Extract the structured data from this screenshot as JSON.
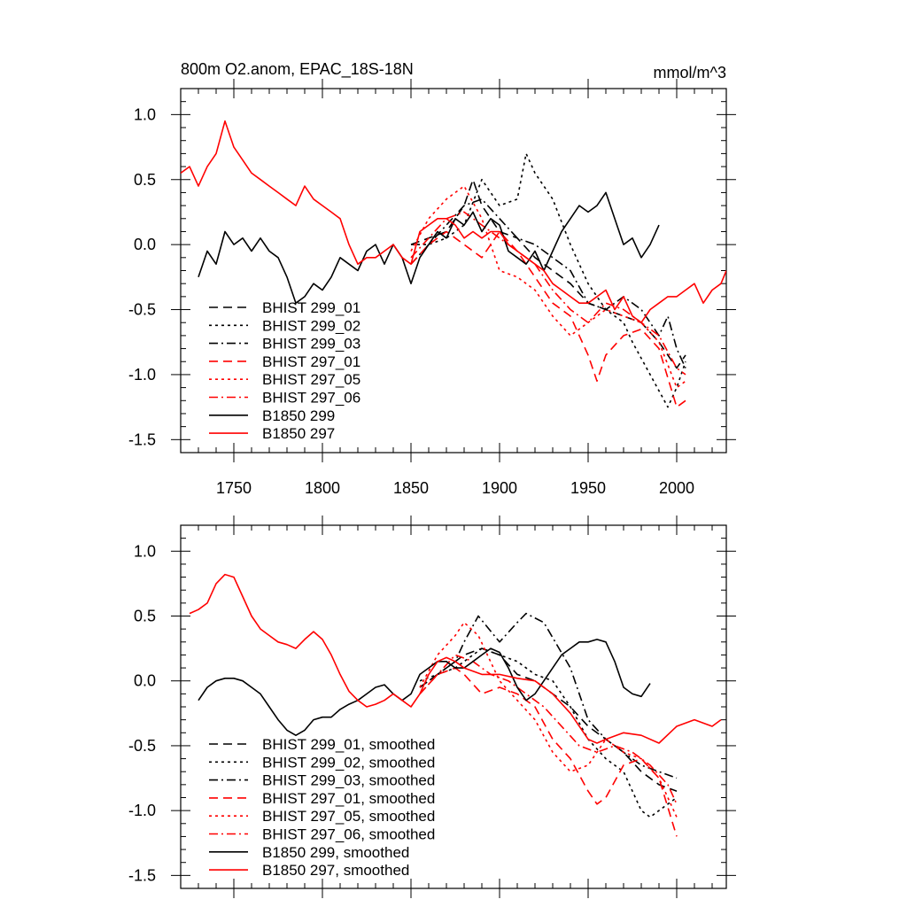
{
  "chart_data": [
    {
      "type": "line",
      "title": "800m O2.anom, EPAC_18S-18N",
      "units": "mmol/m^3",
      "xlabel": "",
      "ylabel": "",
      "xlim": [
        1720,
        2028
      ],
      "ylim": [
        -1.6,
        1.2
      ],
      "xticks": [
        1750,
        1800,
        1850,
        1900,
        1950,
        2000
      ],
      "yticks": [
        -1.5,
        -1.0,
        -0.5,
        0.0,
        0.5,
        1.0
      ],
      "ytick_labels": [
        "-1.5",
        "-1.0",
        "-0.5",
        "0.0",
        "0.5",
        "1.0"
      ],
      "legend_position": "bottom-left",
      "series": [
        {
          "name": "BHIST 299_01",
          "color": "#000000",
          "dash": "dash",
          "x": [
            1850,
            1860,
            1870,
            1880,
            1885,
            1890,
            1900,
            1910,
            1920,
            1930,
            1940,
            1950,
            1960,
            1970,
            1980,
            1990,
            2000,
            2005
          ],
          "y": [
            0.0,
            0.05,
            0.1,
            0.3,
            0.5,
            0.3,
            0.1,
            0.05,
            -0.1,
            -0.2,
            -0.3,
            -0.45,
            -0.5,
            -0.55,
            -0.6,
            -0.75,
            -0.95,
            -0.85
          ]
        },
        {
          "name": "BHIST 299_02",
          "color": "#000000",
          "dash": "dot",
          "x": [
            1850,
            1860,
            1870,
            1880,
            1890,
            1900,
            1910,
            1915,
            1920,
            1930,
            1940,
            1950,
            1960,
            1970,
            1975,
            1985,
            1995,
            2000,
            2005
          ],
          "y": [
            0.0,
            0.0,
            0.05,
            0.15,
            0.5,
            0.3,
            0.35,
            0.7,
            0.55,
            0.35,
            0.0,
            -0.3,
            -0.5,
            -0.6,
            -0.75,
            -1.0,
            -1.25,
            -1.1,
            -0.9
          ]
        },
        {
          "name": "BHIST 299_03",
          "color": "#000000",
          "dash": "dashdot",
          "x": [
            1850,
            1860,
            1870,
            1880,
            1890,
            1900,
            1910,
            1920,
            1930,
            1940,
            1950,
            1960,
            1970,
            1980,
            1990,
            1995,
            2000,
            2005
          ],
          "y": [
            -0.15,
            0.0,
            0.15,
            0.3,
            0.35,
            0.2,
            0.05,
            0.0,
            -0.1,
            -0.2,
            -0.45,
            -0.5,
            -0.4,
            -0.5,
            -0.7,
            -0.55,
            -0.8,
            -0.95
          ]
        },
        {
          "name": "BHIST 297_01",
          "color": "#ff0000",
          "dash": "dash",
          "x": [
            1850,
            1860,
            1870,
            1880,
            1890,
            1900,
            1910,
            1920,
            1930,
            1940,
            1950,
            1955,
            1960,
            1970,
            1980,
            1990,
            2000,
            2005
          ],
          "y": [
            -0.15,
            0.0,
            0.1,
            0.0,
            -0.1,
            0.1,
            -0.05,
            -0.25,
            -0.45,
            -0.55,
            -0.85,
            -1.05,
            -0.85,
            -0.7,
            -0.65,
            -0.8,
            -1.25,
            -1.2
          ]
        },
        {
          "name": "BHIST 297_05",
          "color": "#ff0000",
          "dash": "dot",
          "x": [
            1850,
            1860,
            1870,
            1880,
            1890,
            1900,
            1910,
            1920,
            1930,
            1940,
            1950,
            1960,
            1970,
            1980,
            1990,
            2000,
            2005
          ],
          "y": [
            -0.05,
            0.2,
            0.35,
            0.45,
            0.2,
            -0.2,
            -0.25,
            -0.35,
            -0.55,
            -0.7,
            -0.6,
            -0.5,
            -0.55,
            -0.6,
            -0.75,
            -1.1,
            -1.05
          ]
        },
        {
          "name": "BHIST 297_06",
          "color": "#ff0000",
          "dash": "dashdot",
          "x": [
            1850,
            1860,
            1870,
            1880,
            1890,
            1900,
            1910,
            1920,
            1930,
            1940,
            1950,
            1960,
            1970,
            1980,
            1990,
            2000,
            2005
          ],
          "y": [
            -0.1,
            0.05,
            0.2,
            0.25,
            0.15,
            0.05,
            -0.05,
            -0.15,
            -0.35,
            -0.5,
            -0.6,
            -0.45,
            -0.5,
            -0.6,
            -0.7,
            -0.95,
            -1.0
          ]
        },
        {
          "name": "B1850 299",
          "color": "#000000",
          "dash": "solid",
          "x": [
            1730,
            1735,
            1740,
            1745,
            1750,
            1755,
            1760,
            1765,
            1770,
            1775,
            1780,
            1785,
            1790,
            1795,
            1800,
            1805,
            1810,
            1815,
            1820,
            1825,
            1830,
            1835,
            1840,
            1845,
            1850,
            1855,
            1860,
            1865,
            1870,
            1875,
            1880,
            1885,
            1890,
            1895,
            1900,
            1905,
            1910,
            1915,
            1920,
            1925,
            1930,
            1935,
            1940,
            1945,
            1950,
            1955,
            1960,
            1965,
            1970,
            1975,
            1980,
            1985,
            1990
          ],
          "y": [
            -0.25,
            -0.05,
            -0.15,
            0.1,
            0.0,
            0.05,
            -0.05,
            0.05,
            -0.05,
            -0.1,
            -0.25,
            -0.45,
            -0.4,
            -0.3,
            -0.35,
            -0.25,
            -0.1,
            -0.15,
            -0.2,
            -0.05,
            0.0,
            -0.15,
            0.0,
            -0.1,
            -0.3,
            -0.1,
            0.0,
            0.1,
            0.05,
            0.2,
            0.15,
            0.25,
            0.1,
            0.2,
            0.15,
            -0.05,
            -0.1,
            -0.15,
            -0.05,
            -0.2,
            -0.05,
            0.1,
            0.2,
            0.3,
            0.25,
            0.3,
            0.4,
            0.2,
            0.0,
            0.05,
            -0.1,
            0.0,
            0.15
          ]
        },
        {
          "name": "B1850 297",
          "color": "#ff0000",
          "dash": "solid",
          "x": [
            1720,
            1725,
            1730,
            1735,
            1740,
            1745,
            1750,
            1755,
            1760,
            1765,
            1770,
            1775,
            1780,
            1785,
            1790,
            1795,
            1800,
            1805,
            1810,
            1815,
            1820,
            1825,
            1830,
            1835,
            1840,
            1845,
            1850,
            1855,
            1860,
            1865,
            1870,
            1875,
            1880,
            1885,
            1890,
            1895,
            1900,
            1905,
            1910,
            1915,
            1920,
            1925,
            1930,
            1935,
            1940,
            1945,
            1950,
            1955,
            1960,
            1965,
            1970,
            1975,
            1980,
            1985,
            1990,
            1995,
            2000,
            2005,
            2010,
            2015,
            2020,
            2025,
            2028
          ],
          "y": [
            0.55,
            0.6,
            0.45,
            0.6,
            0.7,
            0.95,
            0.75,
            0.65,
            0.55,
            0.5,
            0.45,
            0.4,
            0.35,
            0.3,
            0.45,
            0.35,
            0.3,
            0.25,
            0.2,
            0.0,
            -0.15,
            -0.1,
            -0.1,
            -0.05,
            0.0,
            -0.1,
            -0.15,
            0.1,
            0.15,
            0.2,
            0.2,
            0.15,
            0.05,
            0.1,
            0.05,
            0.1,
            0.1,
            0.0,
            -0.05,
            -0.1,
            -0.15,
            -0.2,
            -0.3,
            -0.35,
            -0.4,
            -0.45,
            -0.45,
            -0.4,
            -0.35,
            -0.5,
            -0.4,
            -0.55,
            -0.6,
            -0.5,
            -0.45,
            -0.4,
            -0.4,
            -0.35,
            -0.3,
            -0.45,
            -0.35,
            -0.3,
            -0.2
          ]
        }
      ]
    },
    {
      "type": "line",
      "title": "",
      "xlabel": "",
      "ylabel": "",
      "xlim": [
        1720,
        2028
      ],
      "ylim": [
        -1.6,
        1.2
      ],
      "xticks": [
        1750,
        1800,
        1850,
        1900,
        1950,
        2000
      ],
      "yticks": [
        -1.5,
        -1.0,
        -0.5,
        0.0,
        0.5,
        1.0
      ],
      "ytick_labels": [
        "-1.5",
        "-1.0",
        "-0.5",
        "0.0",
        "0.5",
        "1.0"
      ],
      "legend_position": "bottom-left",
      "series": [
        {
          "name": "BHIST 299_01, smoothed",
          "color": "#000000",
          "dash": "dash",
          "x": [
            1855,
            1865,
            1875,
            1880,
            1890,
            1900,
            1910,
            1920,
            1930,
            1940,
            1950,
            1960,
            1970,
            1980,
            1990,
            2000
          ],
          "y": [
            -0.05,
            0.05,
            0.15,
            0.2,
            0.25,
            0.2,
            0.05,
            0.0,
            -0.1,
            -0.2,
            -0.35,
            -0.45,
            -0.55,
            -0.7,
            -0.8,
            -0.85
          ]
        },
        {
          "name": "BHIST 299_02, smoothed",
          "color": "#000000",
          "dash": "dot",
          "x": [
            1855,
            1865,
            1875,
            1880,
            1890,
            1900,
            1910,
            1920,
            1930,
            1940,
            1950,
            1960,
            1970,
            1975,
            1980,
            1985,
            1990,
            1995,
            2000
          ],
          "y": [
            0.0,
            0.05,
            0.1,
            0.15,
            0.25,
            0.2,
            0.15,
            0.05,
            0.0,
            -0.2,
            -0.45,
            -0.6,
            -0.7,
            -0.85,
            -1.0,
            -1.05,
            -1.0,
            -0.95,
            -0.9
          ]
        },
        {
          "name": "BHIST 299_03, smoothed",
          "color": "#000000",
          "dash": "dashdot",
          "x": [
            1855,
            1865,
            1875,
            1880,
            1888,
            1900,
            1910,
            1915,
            1925,
            1940,
            1950,
            1960,
            1970,
            1980,
            1990,
            2000
          ],
          "y": [
            -0.05,
            0.05,
            0.15,
            0.3,
            0.5,
            0.3,
            0.45,
            0.52,
            0.45,
            0.1,
            -0.3,
            -0.45,
            -0.55,
            -0.65,
            -0.7,
            -0.75
          ]
        },
        {
          "name": "BHIST 297_01, smoothed",
          "color": "#ff0000",
          "dash": "dash",
          "x": [
            1855,
            1865,
            1875,
            1880,
            1890,
            1900,
            1910,
            1920,
            1930,
            1940,
            1950,
            1955,
            1960,
            1970,
            1980,
            1990,
            2000
          ],
          "y": [
            -0.1,
            0.05,
            0.1,
            0.05,
            -0.1,
            -0.05,
            -0.1,
            -0.2,
            -0.45,
            -0.6,
            -0.85,
            -0.95,
            -0.9,
            -0.65,
            -0.6,
            -0.75,
            -1.2
          ]
        },
        {
          "name": "BHIST 297_05, smoothed",
          "color": "#ff0000",
          "dash": "dot",
          "x": [
            1855,
            1865,
            1875,
            1880,
            1888,
            1900,
            1910,
            1920,
            1930,
            1940,
            1950,
            1960,
            1970,
            1980,
            1990,
            2000
          ],
          "y": [
            -0.05,
            0.2,
            0.35,
            0.45,
            0.35,
            0.0,
            -0.15,
            -0.3,
            -0.55,
            -0.7,
            -0.65,
            -0.45,
            -0.55,
            -0.6,
            -0.75,
            -1.05
          ]
        },
        {
          "name": "BHIST 297_06, smoothed",
          "color": "#ff0000",
          "dash": "dashdot",
          "x": [
            1855,
            1865,
            1875,
            1885,
            1895,
            1905,
            1915,
            1925,
            1935,
            1945,
            1955,
            1965,
            1975,
            1985,
            1995,
            2000
          ],
          "y": [
            -0.1,
            0.05,
            0.2,
            0.15,
            0.05,
            0.0,
            -0.1,
            -0.2,
            -0.35,
            -0.5,
            -0.55,
            -0.5,
            -0.55,
            -0.65,
            -0.8,
            -0.95
          ]
        },
        {
          "name": "B1850 299, smoothed",
          "color": "#000000",
          "dash": "solid",
          "x": [
            1730,
            1735,
            1740,
            1745,
            1750,
            1755,
            1760,
            1765,
            1770,
            1775,
            1780,
            1785,
            1790,
            1795,
            1800,
            1805,
            1810,
            1815,
            1820,
            1825,
            1830,
            1835,
            1840,
            1845,
            1850,
            1855,
            1860,
            1865,
            1870,
            1875,
            1880,
            1885,
            1890,
            1895,
            1900,
            1905,
            1910,
            1915,
            1920,
            1925,
            1930,
            1935,
            1940,
            1945,
            1950,
            1955,
            1960,
            1965,
            1970,
            1975,
            1980,
            1985
          ],
          "y": [
            -0.15,
            -0.05,
            0.0,
            0.02,
            0.02,
            0.0,
            -0.05,
            -0.1,
            -0.2,
            -0.3,
            -0.38,
            -0.42,
            -0.38,
            -0.3,
            -0.28,
            -0.28,
            -0.22,
            -0.18,
            -0.15,
            -0.1,
            -0.05,
            -0.03,
            -0.1,
            -0.15,
            -0.1,
            0.05,
            0.1,
            0.15,
            0.15,
            0.1,
            0.1,
            0.15,
            0.2,
            0.25,
            0.22,
            0.1,
            -0.05,
            -0.15,
            -0.1,
            0.0,
            0.1,
            0.2,
            0.25,
            0.3,
            0.3,
            0.32,
            0.3,
            0.15,
            -0.05,
            -0.1,
            -0.12,
            -0.02
          ]
        },
        {
          "name": "B1850 297, smoothed",
          "color": "#ff0000",
          "dash": "solid",
          "x": [
            1725,
            1730,
            1735,
            1740,
            1745,
            1750,
            1755,
            1760,
            1765,
            1770,
            1775,
            1780,
            1785,
            1790,
            1795,
            1800,
            1805,
            1810,
            1815,
            1820,
            1825,
            1830,
            1835,
            1840,
            1845,
            1850,
            1855,
            1860,
            1865,
            1870,
            1875,
            1880,
            1890,
            1900,
            1910,
            1920,
            1930,
            1940,
            1950,
            1955,
            1960,
            1970,
            1980,
            1990,
            2000,
            2010,
            2020,
            2025
          ],
          "y": [
            0.52,
            0.55,
            0.6,
            0.75,
            0.82,
            0.8,
            0.65,
            0.5,
            0.4,
            0.35,
            0.3,
            0.28,
            0.25,
            0.32,
            0.38,
            0.32,
            0.2,
            0.05,
            -0.08,
            -0.15,
            -0.2,
            -0.18,
            -0.15,
            -0.1,
            -0.15,
            -0.2,
            -0.1,
            0.05,
            0.15,
            0.18,
            0.15,
            0.1,
            0.05,
            0.05,
            0.02,
            0.0,
            -0.1,
            -0.25,
            -0.45,
            -0.48,
            -0.45,
            -0.4,
            -0.42,
            -0.48,
            -0.35,
            -0.3,
            -0.35,
            -0.3
          ]
        }
      ]
    }
  ]
}
